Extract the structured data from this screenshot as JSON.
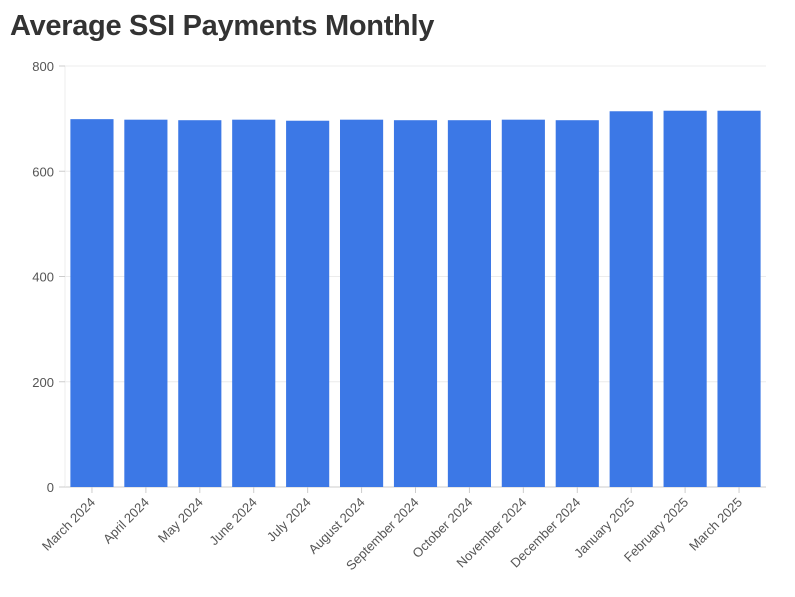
{
  "chart_data": {
    "type": "bar",
    "title": "Average SSI Payments Monthly",
    "xlabel": "",
    "ylabel": "",
    "categories": [
      "March 2024",
      "April 2024",
      "May 2024",
      "June 2024",
      "July 2024",
      "August 2024",
      "September 2024",
      "October 2024",
      "November 2024",
      "December 2024",
      "January 2025",
      "February 2025",
      "March 2025"
    ],
    "values": [
      699,
      698,
      697,
      698,
      696,
      698,
      697,
      697,
      698,
      697,
      714,
      715,
      715
    ],
    "ylim": [
      0,
      800
    ],
    "yticks": [
      0,
      200,
      400,
      600,
      800
    ],
    "grid": true,
    "legend": "none",
    "colors": {
      "bar": "#3c78e6",
      "grid": "#ececec",
      "axis": "#cccccc"
    }
  }
}
